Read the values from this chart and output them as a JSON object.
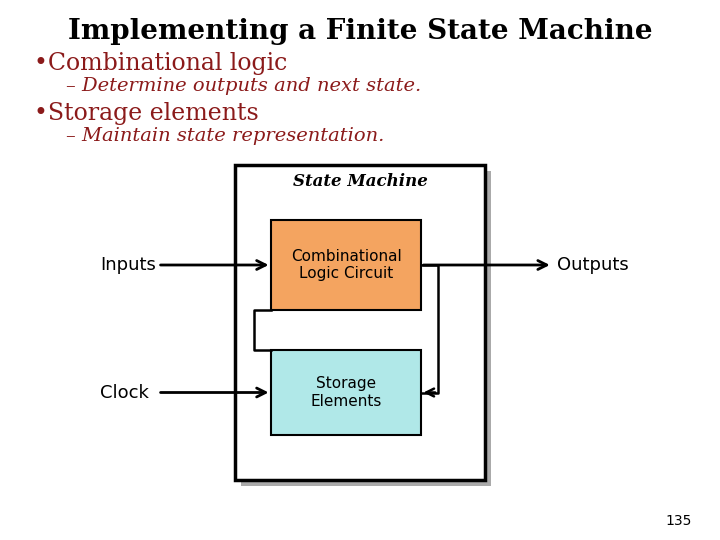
{
  "title": "Implementing a Finite State Machine",
  "title_fontsize": 20,
  "title_fontweight": "bold",
  "title_color": "#000000",
  "bullet1": "•Combinational logic",
  "sub1": "– Determine outputs and next state.",
  "bullet2": "•Storage elements",
  "sub2": "– Maintain state representation.",
  "bullet_fontsize": 17,
  "sub_fontsize": 14,
  "bullet_color": "#8B1A1A",
  "sub_color": "#8B1A1A",
  "diagram_label": "State Machine",
  "box1_label": "Combinational\nLogic Circuit",
  "box2_label": "Storage\nElements",
  "inputs_label": "Inputs",
  "outputs_label": "Outputs",
  "clock_label": "Clock",
  "box1_facecolor": "#F4A460",
  "box2_facecolor": "#B0E8E8",
  "outer_box_facecolor": "#FFFFFF",
  "outer_box_edgecolor": "#000000",
  "shadow_color": "#AAAAAA",
  "page_number": "135",
  "background_color": "#FFFFFF",
  "diagram_label_fontsize": 12
}
